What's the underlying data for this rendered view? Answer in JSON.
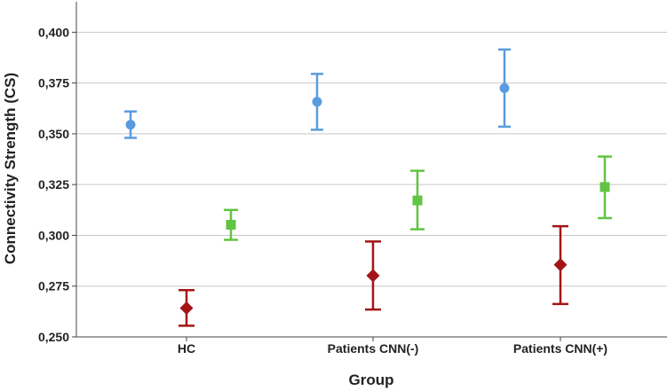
{
  "chart_data": {
    "type": "scatter",
    "xlabel": "Group",
    "ylabel": "Connectivity Strength (CS)",
    "categories": [
      "HC",
      "Patients CNN(-)",
      "Patients CNN(+)"
    ],
    "ylim": [
      0.25,
      0.415
    ],
    "yticks": [
      0.25,
      0.275,
      0.3,
      0.325,
      0.35,
      0.375,
      0.4
    ],
    "ytick_labels": [
      "0,250",
      "0,275",
      "0,300",
      "0,325",
      "0,350",
      "0,375",
      "0,400"
    ],
    "grid": true,
    "series": [
      {
        "marker": "circle",
        "color": "#5a9be0",
        "values": [
          0.3545,
          0.3658,
          0.3725
        ],
        "lower": [
          0.348,
          0.352,
          0.3535
        ],
        "upper": [
          0.361,
          0.3795,
          0.3915
        ]
      },
      {
        "marker": "diamond",
        "color": "#a31515",
        "values": [
          0.2642,
          0.2802,
          0.2855
        ],
        "lower": [
          0.2555,
          0.2635,
          0.2662
        ],
        "upper": [
          0.273,
          0.297,
          0.3045
        ]
      },
      {
        "marker": "square",
        "color": "#62c443",
        "values": [
          0.3052,
          0.3172,
          0.3238
        ],
        "lower": [
          0.2978,
          0.303,
          0.3085
        ],
        "upper": [
          0.3125,
          0.3318,
          0.3388
        ]
      }
    ]
  }
}
